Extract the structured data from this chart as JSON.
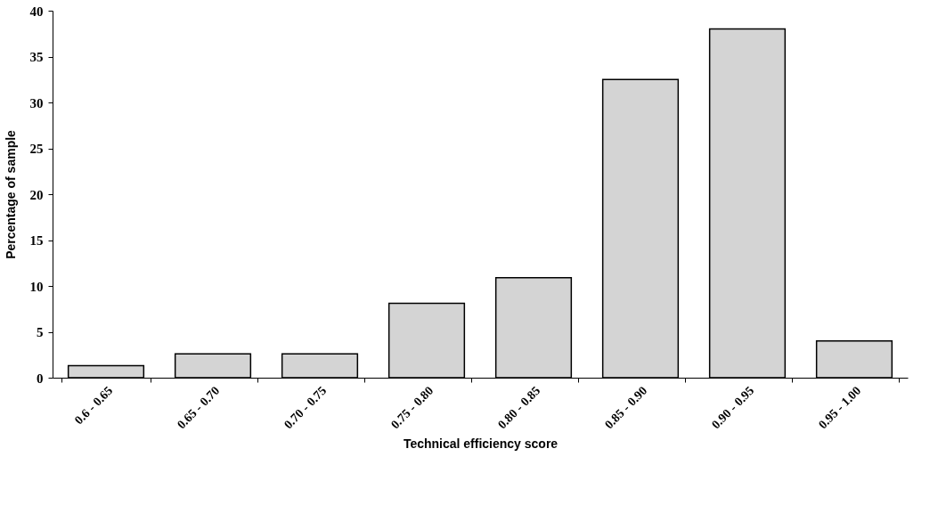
{
  "chart_data": {
    "type": "bar",
    "xlabel": "Technical efficiency score",
    "ylabel": "Percentage of sample",
    "categories": [
      "0.6 - 0.65",
      "0.65 - 0.70",
      "0.70 - 0.75",
      "0.75 - 0.80",
      "0.80 - 0.85",
      "0.85 - 0.90",
      "0.90 - 0.95",
      "0.95 - 1.00"
    ],
    "values": [
      1.3,
      2.6,
      2.6,
      8.1,
      10.9,
      32.5,
      38,
      4
    ],
    "color": "#d4d4d4",
    "ylim": [
      0,
      40
    ],
    "yticks": [
      0,
      5,
      10,
      15,
      20,
      25,
      30,
      35,
      40
    ],
    "grid": false
  }
}
